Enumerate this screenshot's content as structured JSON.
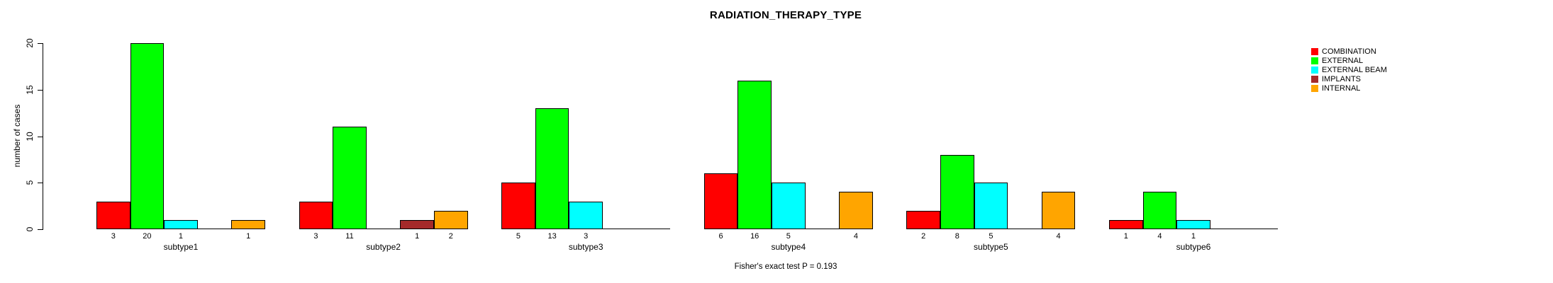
{
  "chart_data": {
    "type": "bar",
    "title": "RADIATION_THERAPY_TYPE",
    "ylabel": "number of cases",
    "xlabel": "",
    "annotation": "Fisher's exact test P = 0.193",
    "ylim": [
      0,
      20
    ],
    "yticks": [
      0,
      5,
      10,
      15,
      20
    ],
    "grid": false,
    "legend_position": "top-right",
    "bar_value_labels": "shown under each nonzero bar",
    "zero_bars": "drawn as flat baseline segments, no label",
    "categories": [
      "subtype1",
      "subtype2",
      "subtype3",
      "subtype4",
      "subtype5",
      "subtype6"
    ],
    "series": [
      {
        "name": "COMBINATION",
        "color": "#ff0000",
        "values": [
          3,
          3,
          5,
          6,
          2,
          1
        ]
      },
      {
        "name": "EXTERNAL",
        "color": "#00ff00",
        "values": [
          20,
          11,
          13,
          16,
          8,
          4
        ]
      },
      {
        "name": "EXTERNAL BEAM",
        "color": "#00ffff",
        "values": [
          1,
          0,
          3,
          5,
          5,
          1
        ]
      },
      {
        "name": "IMPLANTS",
        "color": "#a52a2a",
        "values": [
          0,
          1,
          0,
          0,
          0,
          0
        ]
      },
      {
        "name": "INTERNAL",
        "color": "#ffa500",
        "values": [
          1,
          2,
          0,
          4,
          4,
          0
        ]
      }
    ]
  },
  "colors": {
    "axis": "#000000",
    "text": "#000000",
    "background": "#ffffff"
  }
}
